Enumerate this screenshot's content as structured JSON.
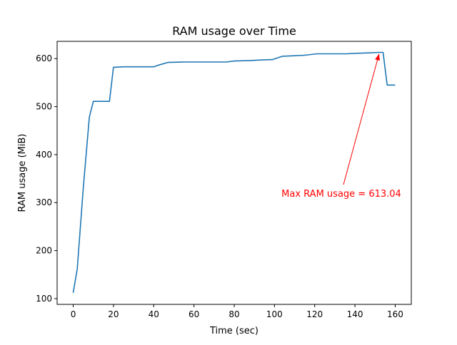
{
  "chart_data": {
    "type": "line",
    "title": "RAM usage over Time",
    "xlabel": "Time (sec)",
    "ylabel": "RAM usage (MiB)",
    "xlim": [
      -8,
      168
    ],
    "ylim": [
      88,
      636
    ],
    "xticks": [
      0,
      20,
      40,
      60,
      80,
      100,
      120,
      140,
      160
    ],
    "yticks": [
      100,
      200,
      300,
      400,
      500,
      600
    ],
    "grid": false,
    "series": [
      {
        "color": "#1f77b4",
        "x": [
          0,
          2,
          5,
          8,
          10,
          18,
          20,
          25,
          40,
          42,
          47,
          55,
          65,
          76,
          80,
          88,
          92,
          99,
          104,
          110,
          115,
          121,
          126,
          136,
          140,
          147,
          152,
          154,
          156,
          160
        ],
        "y": [
          112,
          162,
          330,
          478,
          511,
          511,
          582,
          583,
          583,
          586,
          592,
          593,
          593,
          593,
          595,
          596,
          597,
          598,
          605,
          606,
          607,
          610,
          610,
          610,
          611,
          612,
          613.04,
          613,
          545,
          545
        ]
      }
    ],
    "annotation": {
      "text": "Max RAM usage = 613.04",
      "color": "#ff0000",
      "x": 152,
      "y": 613.04
    }
  }
}
